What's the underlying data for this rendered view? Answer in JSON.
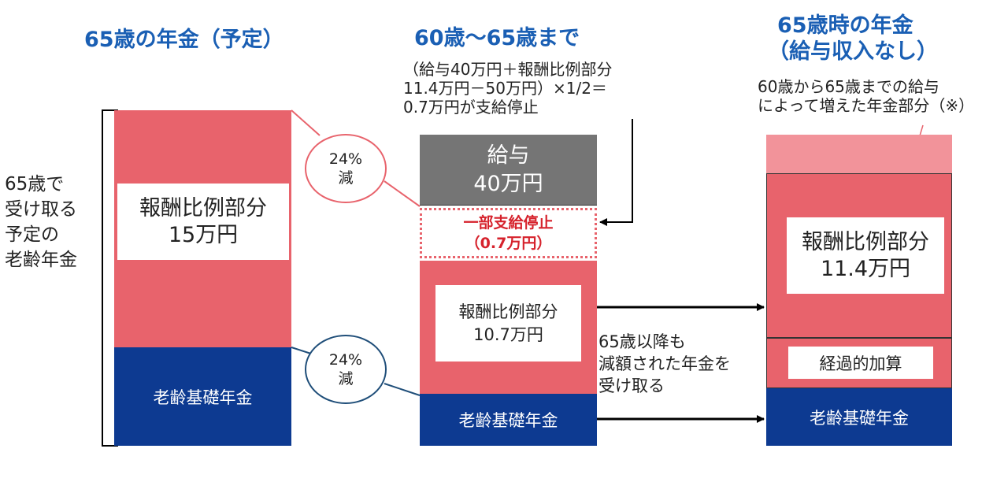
{
  "headers": {
    "col1_title": "65歳の年金（予定）",
    "col2_title": "60歳～65歳まで",
    "col3_title_line1": "65歳時の年金",
    "col3_title_line2": "（給与収入なし）"
  },
  "notes": {
    "formula_line1": "（給与40万円＋報酬比例部分",
    "formula_line2": "11.4万円－50万円）×1/2＝",
    "formula_line3": "0.7万円が支給停止",
    "increase_line1": "60歳から65歳までの給与",
    "increase_line2": "によって増えた年金部分（※）",
    "continue_line1": "65歳以降も",
    "continue_line2": "減額された年金を",
    "continue_line3": "受け取る"
  },
  "side_label": {
    "line1": "65歳で",
    "line2": "受け取る",
    "line3": "予定の",
    "line4": "老齢年金"
  },
  "col1": {
    "earnings_label": "報酬比例部分",
    "earnings_amount": "15万円",
    "basic_label": "老齢基礎年金"
  },
  "circles": {
    "top_percent": "24%",
    "top_label": "減",
    "bottom_percent": "24%",
    "bottom_label": "減"
  },
  "col2": {
    "salary_label": "給与",
    "salary_amount": "40万円",
    "suspension_label": "一部支給停止",
    "suspension_amount": "（0.7万円）",
    "earnings_label": "報酬比例部分",
    "earnings_amount": "10.7万円",
    "basic_label": "老齢基礎年金"
  },
  "col3": {
    "earnings_label": "報酬比例部分",
    "earnings_amount": "11.4万円",
    "transitional_label": "経過的加算",
    "basic_label": "老齢基礎年金"
  },
  "colors": {
    "title_blue": "#1a5fb4",
    "earnings_red": "#e8636c",
    "basic_navy": "#0d3a91",
    "salary_gray": "#757575",
    "increase_pink": "#f2939a",
    "suspension_red": "#d6222c"
  }
}
